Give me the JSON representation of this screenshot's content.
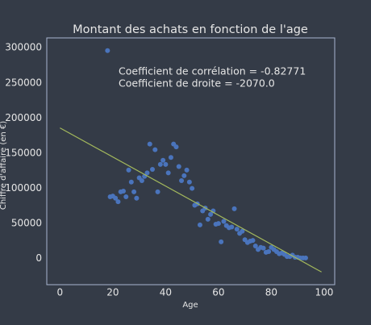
{
  "chart_data": {
    "type": "scatter",
    "title": "Montant des achats en fonction de l'age",
    "xlabel": "Age",
    "ylabel": "Chiffre d'affaire (en €)",
    "annotations": [
      "Coefficient de corrélation = -0.82771",
      "Coefficient de droite = -2070.0"
    ],
    "color": "#4a74bc",
    "x": [
      18,
      19,
      20,
      21,
      22,
      23,
      24,
      25,
      26,
      27,
      28,
      29,
      30,
      31,
      32,
      33,
      34,
      35,
      36,
      37,
      38,
      39,
      40,
      41,
      42,
      43,
      44,
      45,
      46,
      47,
      48,
      49,
      50,
      51,
      52,
      53,
      54,
      55,
      56,
      57,
      58,
      59,
      60,
      61,
      62,
      63,
      64,
      65,
      66,
      67,
      68,
      69,
      70,
      71,
      72,
      73,
      74,
      75,
      76,
      77,
      78,
      79,
      80,
      81,
      82,
      83,
      84,
      85,
      86,
      87,
      88,
      89,
      90,
      91,
      92,
      93
    ],
    "values": [
      296000,
      88000,
      89000,
      86000,
      81000,
      95000,
      96000,
      88000,
      126000,
      109000,
      95000,
      86000,
      115000,
      111000,
      117000,
      122000,
      163000,
      127000,
      155000,
      95000,
      134000,
      140000,
      134000,
      122000,
      144000,
      163000,
      159000,
      131000,
      111000,
      118000,
      126000,
      109000,
      100000,
      76000,
      78000,
      48000,
      68000,
      72000,
      56000,
      63000,
      68000,
      49000,
      50000,
      24000,
      53000,
      47000,
      44000,
      45000,
      71000,
      42000,
      36000,
      39000,
      27000,
      23000,
      25000,
      26000,
      18000,
      13000,
      16000,
      15000,
      9000,
      10000,
      16000,
      13000,
      10000,
      7000,
      8000,
      6000,
      3000,
      3000,
      5000,
      2000,
      2000,
      1000,
      1000,
      1000
    ],
    "line": {
      "x": [
        0,
        99
      ],
      "values": [
        186000,
        -18900
      ],
      "color": "#a3b85c"
    },
    "xlim": [
      -5,
      104
    ],
    "ylim": [
      -37000,
      314000
    ],
    "xticks": [
      0,
      20,
      40,
      60,
      80,
      100
    ],
    "yticks": [
      0,
      50000,
      100000,
      150000,
      200000,
      250000,
      300000
    ],
    "grid": false
  }
}
